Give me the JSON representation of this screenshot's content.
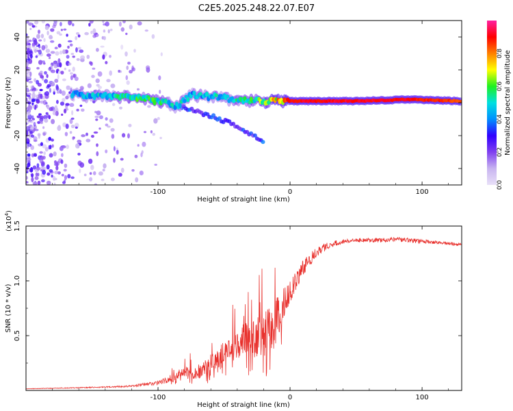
{
  "title": "C2E5.2025.248.22.07.E07",
  "chart_data": [
    {
      "type": "heatmap",
      "name": "spectrogram",
      "xlabel": "Height of straight line (km)",
      "ylabel": "Frequency (Hz)",
      "xlim": [
        -200,
        130
      ],
      "ylim": [
        -50,
        50
      ],
      "xticks": [
        -100,
        0,
        100
      ],
      "xtick_labels": [
        "-100",
        "0",
        "100"
      ],
      "yticks": [
        -40,
        -20,
        0,
        20,
        40
      ],
      "ytick_labels": [
        "-40",
        "-20",
        "0",
        "20",
        "40"
      ],
      "colorbar": {
        "label": "Normalized spectral amplitude",
        "range": [
          0,
          1
        ],
        "ticks": [
          0.0,
          0.2,
          0.4,
          0.6,
          0.8
        ],
        "tick_labels": [
          "0.0",
          "0.2",
          "0.4",
          "0.6",
          "0.8"
        ],
        "colors": [
          "#e8e0f8",
          "#c8b4f0",
          "#8040f0",
          "#3000ff",
          "#0090ff",
          "#00e0e0",
          "#20f020",
          "#ffff00",
          "#ff8000",
          "#ff0000",
          "#ff20a0"
        ]
      },
      "main_ridge": [
        {
          "x": -165,
          "y": 5,
          "amp": 0.45
        },
        {
          "x": -140,
          "y": 4,
          "amp": 0.5
        },
        {
          "x": -120,
          "y": 4,
          "amp": 0.55
        },
        {
          "x": -100,
          "y": 1,
          "amp": 0.55
        },
        {
          "x": -85,
          "y": -2,
          "amp": 0.5
        },
        {
          "x": -75,
          "y": 5,
          "amp": 0.45
        },
        {
          "x": -50,
          "y": 3,
          "amp": 0.5
        },
        {
          "x": -30,
          "y": 1,
          "amp": 0.55
        },
        {
          "x": -10,
          "y": 1,
          "amp": 0.75
        },
        {
          "x": 0,
          "y": 1,
          "amp": 0.9
        },
        {
          "x": 50,
          "y": 1,
          "amp": 0.92
        },
        {
          "x": 90,
          "y": 2,
          "amp": 0.9
        },
        {
          "x": 130,
          "y": 1,
          "amp": 0.85
        }
      ],
      "secondary_branch": [
        {
          "x": -85,
          "y": -2
        },
        {
          "x": -60,
          "y": -8
        },
        {
          "x": -40,
          "y": -14
        },
        {
          "x": -20,
          "y": -24
        }
      ]
    },
    {
      "type": "line",
      "name": "snr",
      "xlabel": "Height of straight line (km)",
      "ylabel": "SNR (10 * v/v)",
      "scale_label": "(x10",
      "scale_exponent": "4",
      "scale_suffix": ")",
      "xlim": [
        -200,
        130
      ],
      "ylim": [
        0,
        15000
      ],
      "xticks": [
        -100,
        0,
        100
      ],
      "xtick_labels": [
        "-100",
        "0",
        "100"
      ],
      "yticks": [
        5000,
        10000,
        15000
      ],
      "ytick_labels": [
        "0.5",
        "1.0",
        "1.5"
      ],
      "color": "#e8302c",
      "series": [
        {
          "name": "SNR",
          "x": [
            -200,
            -180,
            -160,
            -140,
            -120,
            -100,
            -90,
            -80,
            -70,
            -60,
            -50,
            -40,
            -30,
            -20,
            -15,
            -10,
            -5,
            0,
            10,
            20,
            30,
            40,
            50,
            60,
            70,
            80,
            90,
            100,
            110,
            120,
            130
          ],
          "y": [
            150,
            200,
            250,
            300,
            400,
            700,
            1100,
            1800,
            1500,
            2500,
            3500,
            4200,
            4600,
            5000,
            5500,
            6500,
            8000,
            9000,
            11200,
            12700,
            13300,
            13600,
            13700,
            13700,
            13700,
            13800,
            13700,
            13600,
            13500,
            13400,
            13300
          ],
          "noise": [
            20,
            30,
            40,
            60,
            80,
            200,
            350,
            500,
            500,
            800,
            1100,
            1400,
            1700,
            2000,
            2200,
            2000,
            1500,
            1000,
            700,
            500,
            300,
            200,
            180,
            180,
            200,
            200,
            220,
            200,
            150,
            150,
            150
          ]
        }
      ]
    }
  ]
}
